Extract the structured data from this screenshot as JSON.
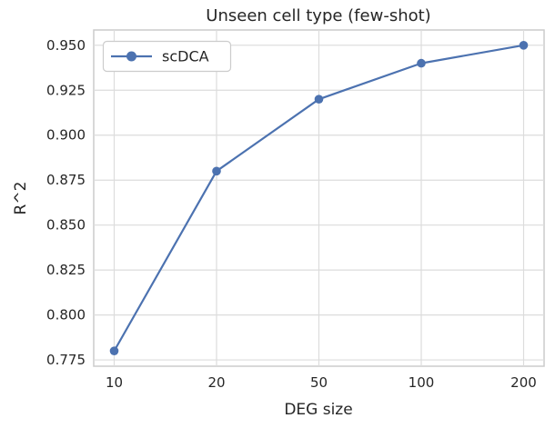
{
  "chart_data": {
    "type": "line",
    "title": "Unseen cell type (few-shot)",
    "xlabel": "DEG size",
    "ylabel": "R^2",
    "categories": [
      "10",
      "20",
      "50",
      "100",
      "200"
    ],
    "series": [
      {
        "name": "scDCA",
        "color": "#4C72B0",
        "values": [
          0.78,
          0.88,
          0.92,
          0.94,
          0.95
        ]
      }
    ],
    "ytick_labels": [
      "0.775",
      "0.800",
      "0.825",
      "0.850",
      "0.875",
      "0.900",
      "0.925",
      "0.950"
    ],
    "ylim": [
      0.7715,
      0.9585
    ],
    "x_margin": 0.2,
    "grid": true,
    "legend_position": "upper left"
  },
  "colors": {
    "background": "#ffffff",
    "grid": "#dcdcdc",
    "spine": "#cccccc",
    "text": "#262626",
    "legend_border": "#cccccc",
    "legend_background": "#ffffff"
  }
}
